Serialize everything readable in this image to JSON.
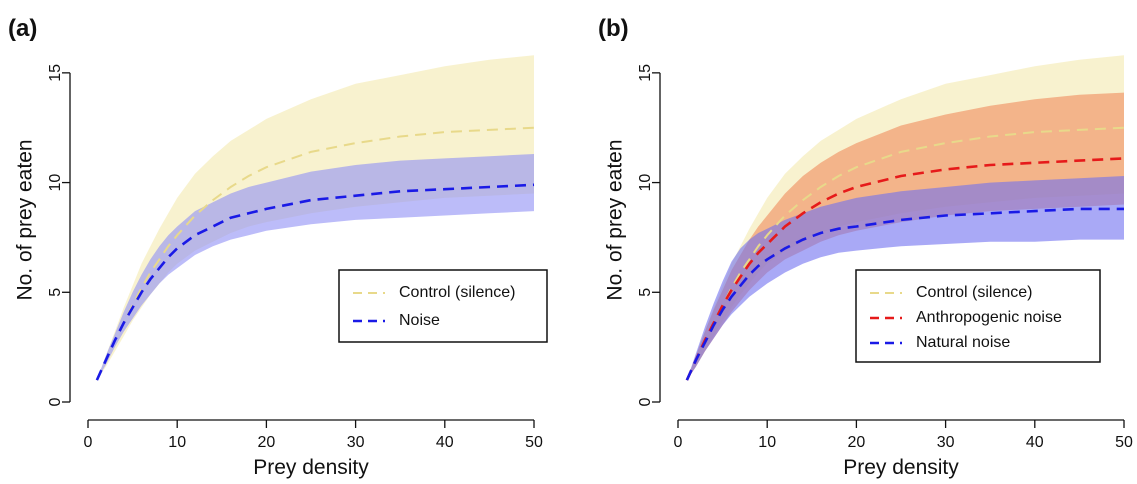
{
  "chart_data": [
    {
      "panel_label": "(a)",
      "type": "line",
      "xlabel": "Prey density",
      "ylabel": "No. of prey eaten",
      "xlim": [
        0,
        50
      ],
      "ylim": [
        0,
        17.5
      ],
      "xticks": [
        0,
        10,
        20,
        30,
        40,
        50
      ],
      "yticks": [
        0,
        5,
        10,
        15
      ],
      "grid": false,
      "legend_position": "lower-right",
      "series": [
        {
          "name": "Control (silence)",
          "color": "#e8d98a",
          "band_color": "#f3e8a8",
          "x": [
            1,
            2,
            3,
            4,
            5,
            6,
            7,
            8,
            9,
            10,
            12,
            14,
            16,
            18,
            20,
            25,
            30,
            35,
            40,
            45,
            50
          ],
          "y": [
            1.0,
            1.9,
            2.8,
            3.6,
            4.4,
            5.2,
            5.9,
            6.5,
            7.1,
            7.6,
            8.5,
            9.2,
            9.8,
            10.3,
            10.7,
            11.4,
            11.8,
            12.1,
            12.3,
            12.4,
            12.5
          ],
          "lower": [
            1.0,
            1.6,
            2.3,
            3.0,
            3.7,
            4.3,
            4.9,
            5.4,
            5.9,
            6.3,
            6.9,
            7.3,
            7.7,
            8.0,
            8.2,
            8.6,
            8.9,
            9.1,
            9.3,
            9.4,
            9.5
          ],
          "upper": [
            1.0,
            2.1,
            3.2,
            4.3,
            5.3,
            6.3,
            7.1,
            7.9,
            8.6,
            9.3,
            10.4,
            11.2,
            11.9,
            12.4,
            12.9,
            13.8,
            14.5,
            14.9,
            15.3,
            15.6,
            15.8
          ]
        },
        {
          "name": "Noise",
          "color": "#1a1ae6",
          "band_color": "#8f8ff5",
          "x": [
            1,
            2,
            3,
            4,
            5,
            6,
            7,
            8,
            9,
            10,
            12,
            14,
            16,
            18,
            20,
            25,
            30,
            35,
            40,
            45,
            50
          ],
          "y": [
            1.0,
            1.9,
            2.8,
            3.6,
            4.3,
            5.0,
            5.6,
            6.1,
            6.6,
            7.0,
            7.6,
            8.0,
            8.4,
            8.6,
            8.8,
            9.2,
            9.4,
            9.6,
            9.7,
            9.8,
            9.9
          ],
          "lower": [
            1.0,
            1.7,
            2.5,
            3.2,
            3.8,
            4.4,
            4.9,
            5.4,
            5.8,
            6.1,
            6.7,
            7.1,
            7.4,
            7.6,
            7.8,
            8.1,
            8.3,
            8.4,
            8.5,
            8.6,
            8.7
          ],
          "upper": [
            1.0,
            2.1,
            3.1,
            4.1,
            5.0,
            5.8,
            6.5,
            7.1,
            7.6,
            8.0,
            8.7,
            9.1,
            9.5,
            9.8,
            10.0,
            10.5,
            10.8,
            11.0,
            11.1,
            11.2,
            11.3
          ]
        }
      ]
    },
    {
      "panel_label": "(b)",
      "type": "line",
      "xlabel": "Prey density",
      "ylabel": "No. of prey eaten",
      "xlim": [
        0,
        50
      ],
      "ylim": [
        0,
        17.5
      ],
      "xticks": [
        0,
        10,
        20,
        30,
        40,
        50
      ],
      "yticks": [
        0,
        5,
        10,
        15
      ],
      "grid": false,
      "legend_position": "lower-right",
      "series": [
        {
          "name": "Control (silence)",
          "color": "#e8d98a",
          "band_color": "#f3e8a8",
          "x": [
            1,
            2,
            3,
            4,
            5,
            6,
            7,
            8,
            9,
            10,
            12,
            14,
            16,
            18,
            20,
            25,
            30,
            35,
            40,
            45,
            50
          ],
          "y": [
            1.0,
            1.9,
            2.8,
            3.6,
            4.4,
            5.2,
            5.9,
            6.5,
            7.1,
            7.6,
            8.5,
            9.2,
            9.8,
            10.3,
            10.7,
            11.4,
            11.8,
            12.1,
            12.3,
            12.4,
            12.5
          ],
          "lower": [
            1.0,
            1.6,
            2.3,
            3.0,
            3.7,
            4.3,
            4.9,
            5.4,
            5.9,
            6.3,
            6.9,
            7.3,
            7.7,
            8.0,
            8.2,
            8.6,
            8.9,
            9.1,
            9.3,
            9.4,
            9.5
          ],
          "upper": [
            1.0,
            2.1,
            3.2,
            4.3,
            5.3,
            6.3,
            7.1,
            7.9,
            8.6,
            9.3,
            10.4,
            11.2,
            11.9,
            12.4,
            12.9,
            13.8,
            14.5,
            14.9,
            15.3,
            15.6,
            15.8
          ]
        },
        {
          "name": "Anthropogenic noise",
          "color": "#e61a1a",
          "band_color": "#f08a5c",
          "x": [
            1,
            2,
            3,
            4,
            5,
            6,
            7,
            8,
            9,
            10,
            12,
            14,
            16,
            18,
            20,
            25,
            30,
            35,
            40,
            45,
            50
          ],
          "y": [
            1.0,
            1.9,
            2.8,
            3.6,
            4.4,
            5.1,
            5.7,
            6.3,
            6.8,
            7.2,
            8.0,
            8.6,
            9.1,
            9.5,
            9.8,
            10.3,
            10.6,
            10.8,
            10.9,
            11.0,
            11.1
          ],
          "lower": [
            1.0,
            1.6,
            2.3,
            2.9,
            3.5,
            4.1,
            4.6,
            5.1,
            5.5,
            5.9,
            6.5,
            6.9,
            7.3,
            7.6,
            7.8,
            8.2,
            8.5,
            8.7,
            8.8,
            8.9,
            9.0
          ],
          "upper": [
            1.0,
            2.1,
            3.2,
            4.2,
            5.1,
            6.0,
            6.7,
            7.4,
            8.0,
            8.5,
            9.5,
            10.3,
            10.9,
            11.4,
            11.8,
            12.6,
            13.1,
            13.5,
            13.8,
            14.0,
            14.1
          ]
        },
        {
          "name": "Natural noise",
          "color": "#1a1ae6",
          "band_color": "#7070f0",
          "x": [
            1,
            2,
            3,
            4,
            5,
            6,
            7,
            8,
            9,
            10,
            12,
            14,
            16,
            18,
            20,
            25,
            30,
            35,
            40,
            45,
            50
          ],
          "y": [
            1.0,
            1.9,
            2.7,
            3.5,
            4.2,
            4.8,
            5.3,
            5.8,
            6.2,
            6.5,
            7.0,
            7.4,
            7.7,
            7.9,
            8.0,
            8.3,
            8.5,
            8.6,
            8.7,
            8.8,
            8.8
          ],
          "lower": [
            1.0,
            1.6,
            2.3,
            2.9,
            3.5,
            4.0,
            4.4,
            4.8,
            5.1,
            5.4,
            5.9,
            6.3,
            6.6,
            6.8,
            6.9,
            7.1,
            7.2,
            7.3,
            7.3,
            7.4,
            7.4
          ],
          "upper": [
            1.0,
            2.2,
            3.4,
            4.5,
            5.5,
            6.4,
            7.0,
            7.4,
            7.7,
            7.9,
            8.3,
            8.6,
            8.9,
            9.1,
            9.3,
            9.6,
            9.8,
            10.0,
            10.1,
            10.2,
            10.3
          ]
        }
      ]
    }
  ]
}
